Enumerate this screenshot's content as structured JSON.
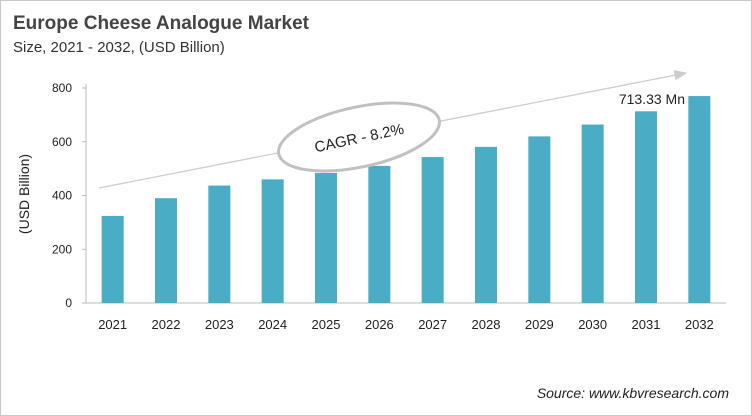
{
  "chart_data": {
    "type": "bar",
    "title": "Europe Cheese Analogue Market",
    "subtitle": "Size, 2021 - 2032, (USD Billion)",
    "xlabel": "",
    "ylabel": "(USD Billion)",
    "categories": [
      "2021",
      "2022",
      "2023",
      "2024",
      "2025",
      "2026",
      "2027",
      "2028",
      "2029",
      "2030",
      "2031",
      "2032"
    ],
    "values": [
      324,
      390,
      437,
      460,
      484,
      510,
      543,
      581,
      620,
      664,
      713.33,
      770
    ],
    "ylim": [
      0,
      800
    ],
    "yticks": [
      0,
      200,
      400,
      600,
      800
    ],
    "grid": false,
    "bar_color": "#4bacc6",
    "annotations": {
      "cagr": "CAGR - 8.2%",
      "value_label": "713.33 Mn"
    },
    "source": "Source: www.kbvresearch.com"
  }
}
